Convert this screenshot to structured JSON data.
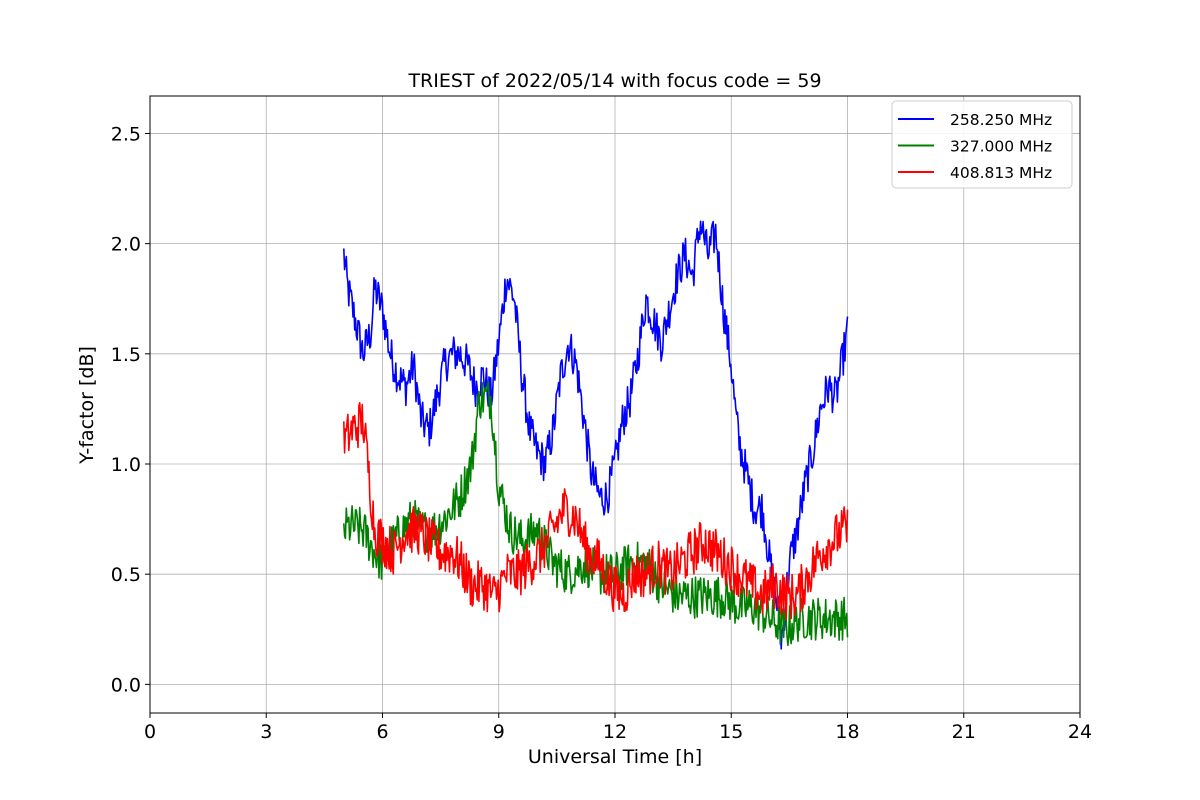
{
  "chart_data": {
    "type": "line",
    "title": "TRIEST of 2022/05/14 with focus code = 59",
    "xlabel": "Universal Time [h]",
    "ylabel": "Y-factor [dB]",
    "xlim": [
      0,
      24
    ],
    "ylim": [
      -0.13,
      2.67
    ],
    "xticks": [
      0,
      3,
      6,
      9,
      12,
      15,
      18,
      21,
      24
    ],
    "yticks": [
      0.0,
      0.5,
      1.0,
      1.5,
      2.0,
      2.5
    ],
    "xtick_labels": [
      "0",
      "3",
      "6",
      "9",
      "12",
      "15",
      "18",
      "21",
      "24"
    ],
    "ytick_labels": [
      "0.0",
      "0.5",
      "1.0",
      "1.5",
      "2.0",
      "2.5"
    ],
    "grid": true,
    "legend_position": "top-right",
    "series": [
      {
        "name": "258.250 MHz",
        "color": "#0000ff",
        "noise": 0.09,
        "x": [
          5.0,
          5.1,
          5.3,
          5.5,
          5.7,
          5.8,
          6.0,
          6.2,
          6.4,
          6.6,
          6.8,
          7.0,
          7.2,
          7.4,
          7.6,
          7.8,
          8.0,
          8.2,
          8.4,
          8.6,
          8.8,
          9.0,
          9.2,
          9.4,
          9.6,
          9.8,
          10.0,
          10.2,
          10.4,
          10.6,
          10.8,
          11.0,
          11.2,
          11.4,
          11.6,
          11.8,
          12.0,
          12.2,
          12.4,
          12.6,
          12.8,
          13.0,
          13.2,
          13.4,
          13.6,
          13.8,
          14.0,
          14.2,
          14.4,
          14.6,
          14.8,
          15.0,
          15.1,
          15.2,
          15.4,
          15.6,
          15.8,
          16.0,
          16.2,
          16.3,
          16.5,
          16.7,
          16.9,
          17.1,
          17.3,
          17.5,
          17.7,
          17.9,
          18.0
        ],
        "y": [
          1.95,
          1.8,
          1.65,
          1.5,
          1.6,
          1.8,
          1.7,
          1.5,
          1.4,
          1.35,
          1.45,
          1.2,
          1.15,
          1.3,
          1.45,
          1.5,
          1.5,
          1.45,
          1.35,
          1.4,
          1.3,
          1.55,
          1.85,
          1.75,
          1.4,
          1.15,
          1.05,
          1.0,
          1.15,
          1.4,
          1.55,
          1.45,
          1.2,
          0.95,
          0.85,
          0.85,
          1.0,
          1.2,
          1.3,
          1.5,
          1.75,
          1.65,
          1.55,
          1.7,
          1.85,
          1.95,
          1.85,
          2.1,
          1.95,
          2.05,
          1.7,
          1.45,
          1.25,
          1.1,
          0.95,
          0.8,
          0.8,
          0.55,
          0.35,
          0.2,
          0.55,
          0.7,
          0.9,
          1.05,
          1.25,
          1.35,
          1.3,
          1.5,
          1.6
        ]
      },
      {
        "name": "327.000 MHz",
        "color": "#008000",
        "noise": 0.1,
        "x": [
          5.0,
          5.2,
          5.5,
          5.8,
          6.0,
          6.3,
          6.6,
          6.8,
          7.0,
          7.3,
          7.6,
          8.0,
          8.3,
          8.5,
          8.8,
          9.0,
          9.3,
          9.6,
          10.0,
          10.4,
          10.8,
          11.2,
          11.6,
          12.0,
          12.4,
          12.8,
          13.2,
          13.6,
          14.0,
          14.4,
          14.8,
          15.2,
          15.6,
          16.0,
          16.4,
          16.8,
          17.2,
          17.6,
          18.0
        ],
        "y": [
          0.7,
          0.72,
          0.7,
          0.6,
          0.55,
          0.65,
          0.72,
          0.75,
          0.7,
          0.7,
          0.75,
          0.85,
          1.0,
          1.3,
          1.3,
          0.9,
          0.7,
          0.65,
          0.7,
          0.55,
          0.5,
          0.55,
          0.5,
          0.5,
          0.55,
          0.55,
          0.45,
          0.4,
          0.4,
          0.4,
          0.4,
          0.35,
          0.35,
          0.3,
          0.25,
          0.3,
          0.3,
          0.3,
          0.3
        ]
      },
      {
        "name": "408.813 MHz",
        "color": "#ff0000",
        "noise": 0.11,
        "x": [
          5.0,
          5.2,
          5.5,
          5.8,
          6.0,
          6.3,
          6.6,
          6.9,
          7.2,
          7.5,
          7.8,
          8.0,
          8.3,
          8.6,
          8.9,
          9.2,
          9.5,
          9.8,
          10.1,
          10.4,
          10.7,
          11.0,
          11.3,
          11.6,
          11.9,
          12.2,
          12.5,
          12.8,
          13.1,
          13.4,
          13.7,
          14.0,
          14.3,
          14.6,
          14.9,
          15.2,
          15.5,
          15.8,
          16.1,
          16.4,
          16.7,
          17.0,
          17.3,
          17.6,
          17.9,
          18.0
        ],
        "y": [
          1.1,
          1.15,
          1.2,
          0.7,
          0.65,
          0.6,
          0.7,
          0.7,
          0.65,
          0.6,
          0.6,
          0.55,
          0.45,
          0.45,
          0.4,
          0.5,
          0.5,
          0.55,
          0.6,
          0.7,
          0.8,
          0.75,
          0.6,
          0.55,
          0.45,
          0.4,
          0.5,
          0.5,
          0.55,
          0.5,
          0.55,
          0.6,
          0.65,
          0.6,
          0.55,
          0.5,
          0.45,
          0.4,
          0.45,
          0.4,
          0.4,
          0.5,
          0.6,
          0.65,
          0.7,
          0.7
        ]
      }
    ]
  }
}
